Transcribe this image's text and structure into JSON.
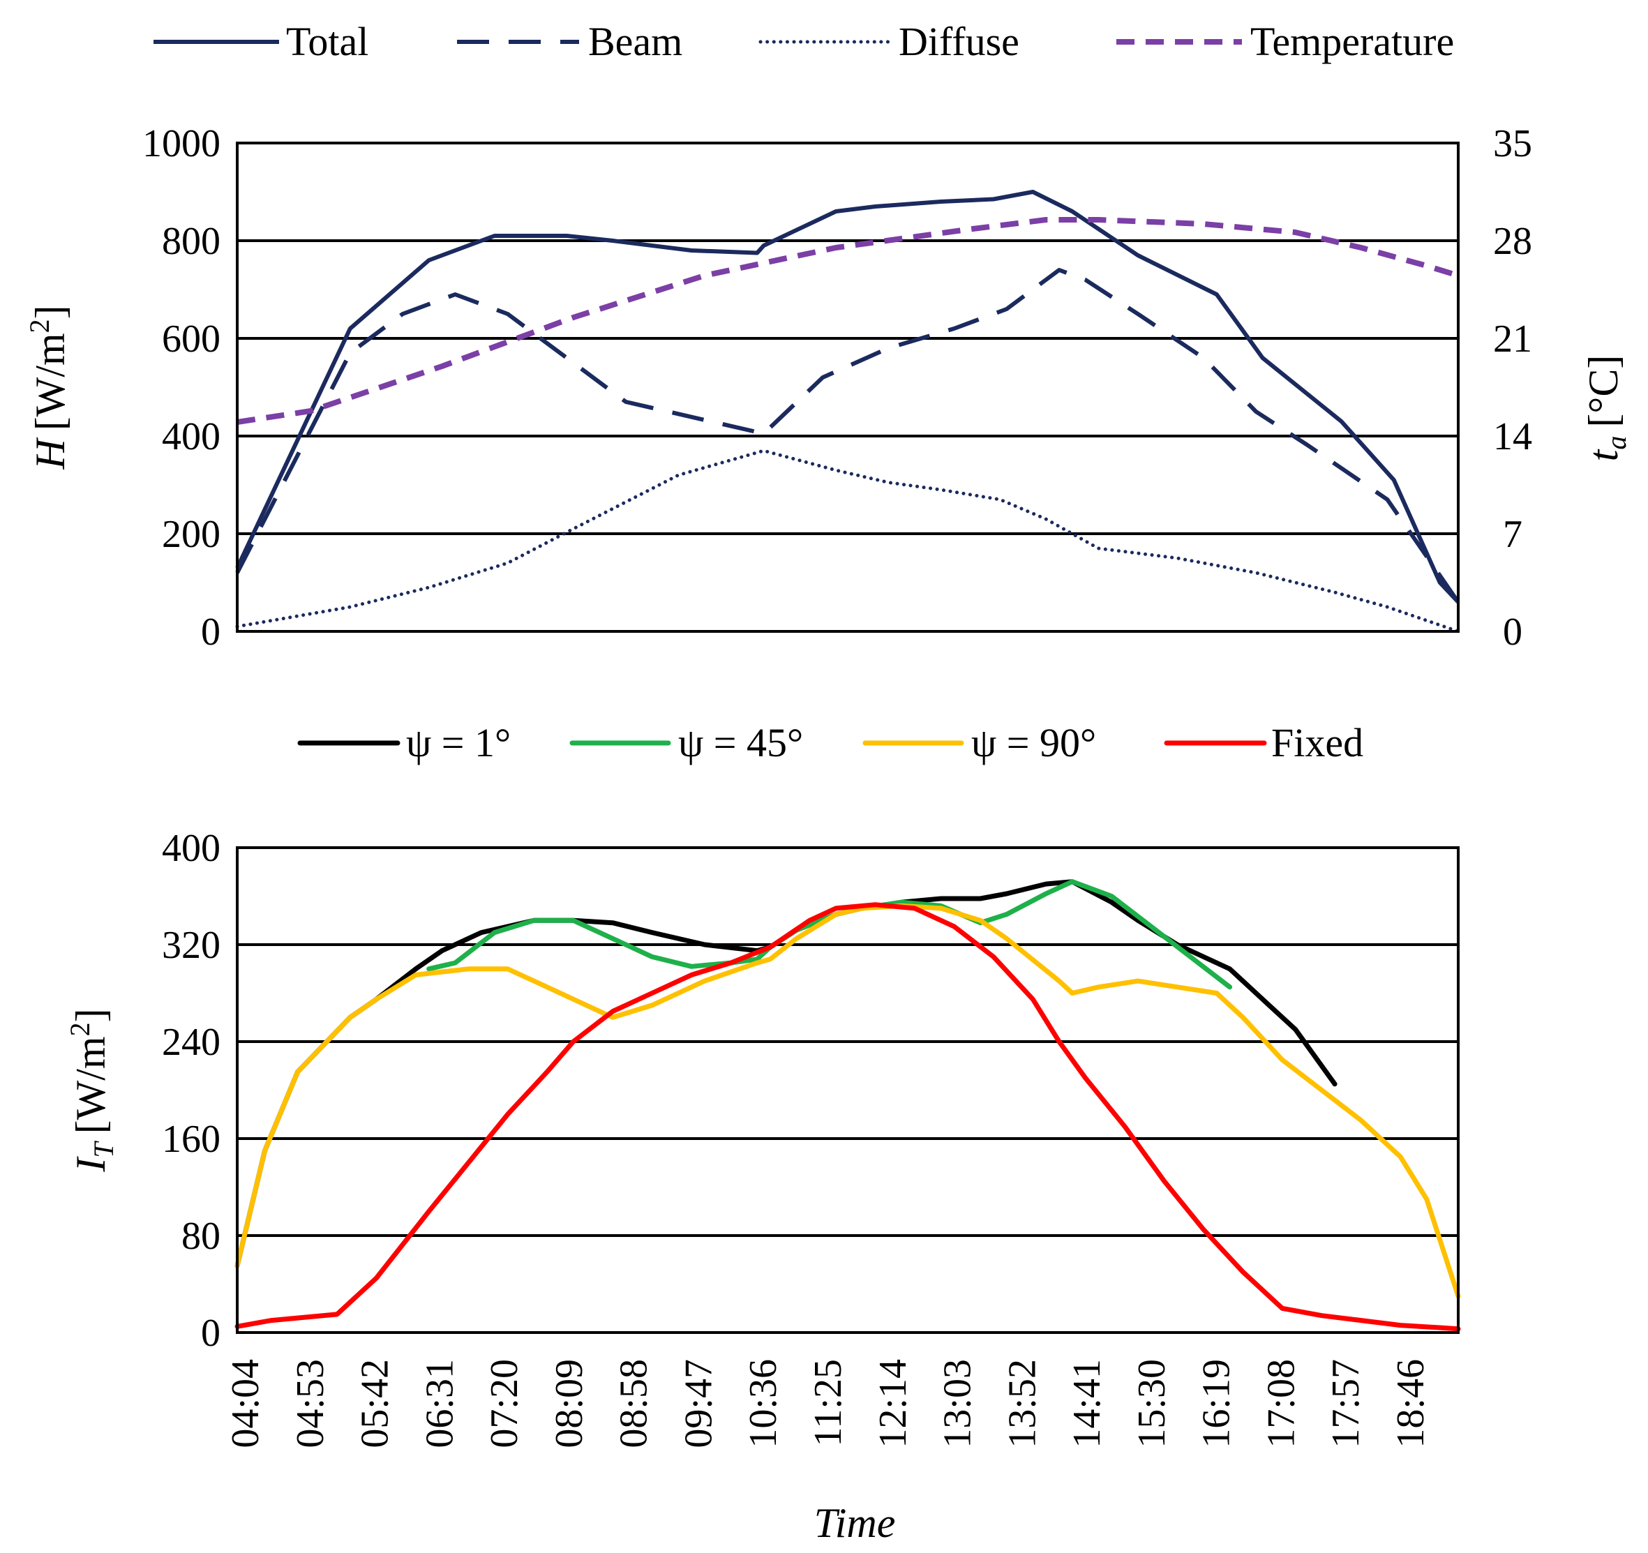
{
  "colors": {
    "navy": "#1B2A5E",
    "purple": "#7B3FA6",
    "black": "#000000",
    "green": "#1EB04A",
    "yellow": "#FFC000",
    "red": "#FF0000"
  },
  "chart_data": [
    {
      "type": "line",
      "id": "top",
      "legend": [
        {
          "key": "total",
          "label": "Total",
          "style": "solid"
        },
        {
          "key": "beam",
          "label": "Beam",
          "style": "dashed"
        },
        {
          "key": "diffuse",
          "label": "Diffuse",
          "style": "dotted"
        },
        {
          "key": "temperature",
          "label": "Temperature",
          "style": "dashed"
        }
      ],
      "ylabel": {
        "symbol": "H",
        "unit": "[W/m",
        "sup": "2",
        "close": "]"
      },
      "y2label": {
        "symbol": "t",
        "sub": "a",
        "unit": "[°C]"
      },
      "ylim": [
        0,
        1000
      ],
      "yticks": [
        "0",
        "200",
        "400",
        "600",
        "800",
        "1000"
      ],
      "y2lim": [
        0,
        35
      ],
      "y2ticks": [
        "0",
        "7",
        "14",
        "21",
        "28",
        "35"
      ],
      "grid": true,
      "x_minutes_range": [
        244,
        1174
      ],
      "series": [
        {
          "name": "Total",
          "key": "total",
          "axis": "left",
          "x": [
            244,
            330,
            390,
            440,
            495,
            530,
            590,
            640,
            645,
            700,
            730,
            780,
            820,
            850,
            880,
            930,
            990,
            1025,
            1085,
            1125,
            1160,
            1174
          ],
          "y": [
            130,
            620,
            760,
            810,
            810,
            800,
            780,
            775,
            790,
            860,
            870,
            880,
            885,
            900,
            860,
            770,
            690,
            560,
            430,
            310,
            100,
            60
          ]
        },
        {
          "name": "Beam",
          "key": "beam",
          "axis": "left",
          "x": [
            244,
            330,
            370,
            410,
            450,
            500,
            540,
            645,
            690,
            740,
            790,
            830,
            855,
            870,
            890,
            930,
            980,
            1020,
            1060,
            1120,
            1174
          ],
          "y": [
            120,
            570,
            650,
            690,
            650,
            550,
            470,
            405,
            520,
            580,
            620,
            660,
            710,
            740,
            720,
            650,
            560,
            450,
            380,
            270,
            60
          ]
        },
        {
          "name": "Diffuse",
          "key": "diffuse",
          "axis": "left",
          "x": [
            244,
            330,
            390,
            450,
            500,
            580,
            645,
            700,
            740,
            780,
            825,
            860,
            900,
            960,
            1020,
            1080,
            1120,
            1174
          ],
          "y": [
            10,
            50,
            90,
            140,
            210,
            320,
            370,
            330,
            305,
            290,
            270,
            230,
            170,
            150,
            120,
            80,
            50,
            0
          ]
        },
        {
          "name": "Temperature",
          "key": "temperature",
          "axis": "right",
          "x": [
            244,
            300,
            400,
            500,
            600,
            700,
            800,
            860,
            900,
            980,
            1050,
            1100,
            1150,
            1174
          ],
          "y": [
            15,
            15.8,
            19,
            22.5,
            25.5,
            27.5,
            28.8,
            29.5,
            29.5,
            29.2,
            28.6,
            27.5,
            26.2,
            25.5
          ]
        }
      ]
    },
    {
      "type": "line",
      "id": "bottom",
      "legend": [
        {
          "key": "psi1",
          "label": "ψ = 1°",
          "style": "solid"
        },
        {
          "key": "psi45",
          "label": "ψ = 45°",
          "style": "solid"
        },
        {
          "key": "psi90",
          "label": "ψ = 90°",
          "style": "solid"
        },
        {
          "key": "fixed",
          "label": "Fixed",
          "style": "solid"
        }
      ],
      "xlabel": "Time",
      "xticks": [
        "04:04",
        "04:53",
        "05:42",
        "06:31",
        "07:20",
        "08:09",
        "08:58",
        "09:47",
        "10:36",
        "11:25",
        "12:14",
        "13:03",
        "13:52",
        "14:41",
        "15:30",
        "16:19",
        "17:08",
        "17:57",
        "18:46"
      ],
      "ylabel": {
        "symbol": "I",
        "sub": "T",
        "unit": "[W/m",
        "sup": "2",
        "close": "]"
      },
      "ylim": [
        0,
        400
      ],
      "yticks": [
        "0",
        "80",
        "160",
        "240",
        "320",
        "400"
      ],
      "grid": true,
      "x_minutes_range": [
        244,
        1174
      ],
      "series": [
        {
          "name": "ψ = 1°",
          "key": "psi1",
          "x": [
            244,
            265,
            290,
            330,
            350,
            380,
            400,
            430,
            470,
            500,
            530,
            560,
            600,
            640,
            650,
            670,
            700,
            720,
            750,
            780,
            810,
            830,
            860,
            880,
            910,
            930,
            960,
            1000,
            1030,
            1050,
            1080
          ],
          "y": [
            55,
            150,
            215,
            260,
            275,
            300,
            315,
            330,
            340,
            340,
            338,
            330,
            320,
            315,
            318,
            332,
            345,
            350,
            355,
            358,
            358,
            362,
            370,
            372,
            355,
            340,
            320,
            300,
            270,
            250,
            205
          ]
        },
        {
          "name": "ψ = 45°",
          "key": "psi45",
          "x": [
            390,
            410,
            440,
            470,
            500,
            530,
            560,
            590,
            620,
            640,
            650,
            670,
            700,
            720,
            750,
            780,
            810,
            830,
            860,
            880,
            910,
            940,
            970,
            1000
          ],
          "y": [
            300,
            305,
            330,
            340,
            340,
            325,
            310,
            302,
            305,
            308,
            318,
            332,
            345,
            350,
            355,
            352,
            338,
            345,
            362,
            372,
            360,
            335,
            310,
            285
          ]
        },
        {
          "name": "ψ = 90°",
          "key": "psi90",
          "x": [
            244,
            265,
            290,
            330,
            350,
            380,
            420,
            450,
            470,
            500,
            530,
            560,
            600,
            640,
            650,
            670,
            700,
            720,
            750,
            780,
            810,
            830,
            870,
            880,
            900,
            930,
            960,
            990,
            1010,
            1040,
            1070,
            1100,
            1130,
            1150,
            1174
          ],
          "y": [
            55,
            150,
            215,
            260,
            275,
            295,
            300,
            300,
            290,
            275,
            260,
            270,
            290,
            305,
            308,
            325,
            345,
            350,
            352,
            350,
            340,
            325,
            290,
            280,
            285,
            290,
            285,
            280,
            260,
            225,
            200,
            175,
            145,
            110,
            30
          ]
        },
        {
          "name": "Fixed",
          "key": "fixed",
          "x": [
            244,
            270,
            320,
            350,
            390,
            420,
            450,
            480,
            500,
            530,
            560,
            590,
            620,
            650,
            680,
            700,
            730,
            760,
            790,
            820,
            850,
            870,
            890,
            920,
            950,
            980,
            1010,
            1040,
            1070,
            1100,
            1130,
            1160,
            1174
          ],
          "y": [
            5,
            10,
            15,
            45,
            100,
            140,
            180,
            215,
            240,
            265,
            280,
            295,
            305,
            318,
            340,
            350,
            353,
            350,
            335,
            310,
            275,
            240,
            210,
            170,
            125,
            85,
            50,
            20,
            14,
            10,
            6,
            4,
            3
          ]
        }
      ]
    }
  ]
}
